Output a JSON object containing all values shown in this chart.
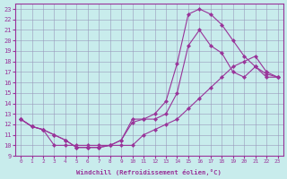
{
  "xlabel": "Windchill (Refroidissement éolien,°C)",
  "bg_color": "#c8ecec",
  "line_color": "#993399",
  "xlim": [
    -0.5,
    23.5
  ],
  "ylim": [
    9,
    23.5
  ],
  "xticks": [
    0,
    1,
    2,
    3,
    4,
    5,
    6,
    7,
    8,
    9,
    10,
    11,
    12,
    13,
    14,
    15,
    16,
    17,
    18,
    19,
    20,
    21,
    22,
    23
  ],
  "yticks": [
    9,
    10,
    11,
    12,
    13,
    14,
    15,
    16,
    17,
    18,
    19,
    20,
    21,
    22,
    23
  ],
  "line1_x": [
    0,
    1,
    2,
    3,
    4,
    5,
    6,
    7,
    8,
    9,
    10,
    11,
    12,
    13,
    14,
    15,
    16,
    17,
    18,
    19,
    20,
    21,
    22,
    23
  ],
  "line1_y": [
    12.5,
    11.8,
    11.5,
    11.0,
    10.5,
    9.8,
    9.8,
    9.8,
    10.0,
    10.5,
    12.5,
    12.5,
    12.5,
    13.0,
    15.0,
    19.5,
    21.0,
    19.5,
    18.8,
    17.0,
    16.5,
    17.5,
    16.5,
    16.5
  ],
  "line2_x": [
    0,
    1,
    2,
    3,
    4,
    5,
    6,
    7,
    8,
    9,
    10,
    11,
    12,
    13,
    14,
    15,
    16,
    17,
    18,
    19,
    20,
    21,
    22,
    23
  ],
  "line2_y": [
    12.5,
    11.8,
    11.5,
    11.0,
    10.5,
    9.8,
    9.8,
    9.8,
    10.0,
    10.5,
    12.2,
    12.5,
    13.0,
    14.2,
    17.8,
    22.5,
    23.0,
    22.5,
    21.5,
    20.0,
    18.5,
    17.5,
    16.8,
    16.5
  ],
  "line3_x": [
    0,
    1,
    2,
    3,
    4,
    5,
    6,
    7,
    8,
    9,
    10,
    11,
    12,
    13,
    14,
    15,
    16,
    17,
    18,
    19,
    20,
    21,
    22,
    23
  ],
  "line3_y": [
    12.5,
    11.8,
    11.5,
    10.0,
    10.0,
    10.0,
    10.0,
    10.0,
    10.0,
    10.0,
    10.0,
    11.0,
    11.5,
    12.0,
    12.5,
    13.5,
    14.5,
    15.5,
    16.5,
    17.5,
    18.0,
    18.5,
    17.0,
    16.5
  ],
  "grid_color": "#9999bb",
  "marker": "D",
  "markersize": 2.2
}
